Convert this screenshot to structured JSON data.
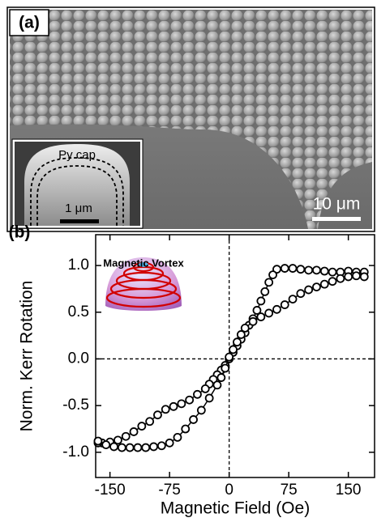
{
  "panel_a": {
    "label": "(a)",
    "inset_label": "Py cap",
    "inset_scale": "1 μm",
    "scale_bar": "10 μm"
  },
  "chart_data": {
    "type": "line",
    "label": "(b)",
    "annotation": "Magnetic Vortex",
    "x_label": "Magnetic Field (Oe)",
    "y_label": "Norm. Kerr Rotation",
    "xlim": [
      -168,
      183
    ],
    "ylim": [
      -1.27,
      1.33
    ],
    "xticks": [
      -150,
      -75,
      0,
      75,
      150
    ],
    "yticks": [
      {
        "value": -1,
        "label": "-1.0"
      },
      -0.5,
      {
        "value": 0,
        "label": "0.0"
      },
      0.5,
      {
        "value": 1,
        "label": "1.0"
      }
    ],
    "origin_lines": true,
    "marker": "open-circle",
    "color": "#000000",
    "series": [
      {
        "x": [
          170,
          160,
          150,
          140,
          130,
          120,
          110,
          100,
          90,
          80,
          70,
          60,
          55,
          50,
          45,
          40,
          35,
          30,
          25,
          20,
          15,
          10,
          5,
          0,
          -5,
          -10,
          -15,
          -20,
          -25,
          -30,
          -40,
          -50,
          -60,
          -70,
          -80,
          -90,
          -100,
          -110,
          -120,
          -130,
          -140,
          -150,
          -160,
          -165
        ],
        "values": [
          0.93,
          0.93,
          0.94,
          0.93,
          0.93,
          0.94,
          0.95,
          0.95,
          0.96,
          0.97,
          0.97,
          0.96,
          0.9,
          0.82,
          0.72,
          0.62,
          0.52,
          0.43,
          0.36,
          0.28,
          0.21,
          0.14,
          0.07,
          0,
          -0.07,
          -0.12,
          -0.17,
          -0.22,
          -0.27,
          -0.32,
          -0.38,
          -0.44,
          -0.48,
          -0.51,
          -0.54,
          -0.6,
          -0.67,
          -0.72,
          -0.78,
          -0.83,
          -0.87,
          -0.89,
          -0.9,
          -0.9
        ]
      },
      {
        "x": [
          -165,
          -155,
          -145,
          -135,
          -125,
          -115,
          -105,
          -95,
          -85,
          -75,
          -65,
          -55,
          -45,
          -35,
          -25,
          -15,
          -10,
          -5,
          0,
          5,
          10,
          15,
          20,
          30,
          40,
          50,
          60,
          70,
          80,
          90,
          100,
          110,
          120,
          130,
          140,
          150,
          160,
          170
        ],
        "values": [
          -0.88,
          -0.92,
          -0.94,
          -0.95,
          -0.95,
          -0.95,
          -0.95,
          -0.94,
          -0.93,
          -0.9,
          -0.84,
          -0.75,
          -0.65,
          -0.55,
          -0.42,
          -0.28,
          -0.2,
          -0.1,
          0.02,
          0.1,
          0.18,
          0.26,
          0.33,
          0.4,
          0.45,
          0.49,
          0.53,
          0.58,
          0.64,
          0.7,
          0.74,
          0.77,
          0.8,
          0.83,
          0.86,
          0.88,
          0.89,
          0.88
        ]
      }
    ]
  }
}
